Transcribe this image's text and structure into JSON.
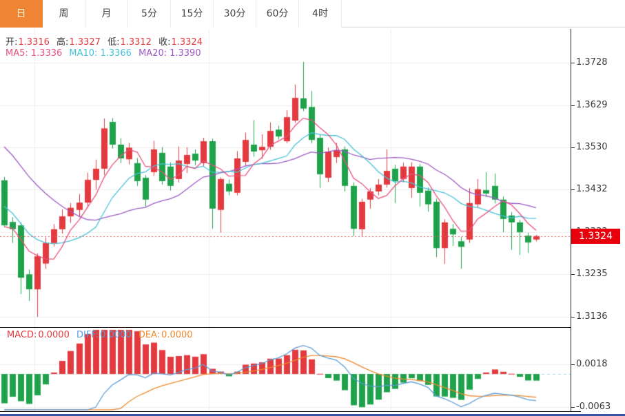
{
  "toolbar": {
    "tabs": [
      {
        "label": "日",
        "active": true
      },
      {
        "label": "周",
        "active": false
      },
      {
        "label": "月",
        "active": false
      },
      {
        "label": "5分",
        "active": false
      },
      {
        "label": "15分",
        "active": false
      },
      {
        "label": "30分",
        "active": false
      },
      {
        "label": "60分",
        "active": false
      },
      {
        "label": "4时",
        "active": false
      }
    ]
  },
  "quote_bar": {
    "open_label": "开:",
    "open": "1.3316",
    "high_label": "高:",
    "high": "1.3327",
    "low_label": "低:",
    "low": "1.3312",
    "close_label": "收:",
    "close": "1.3324"
  },
  "ma_bar": {
    "ma5_label": "MA5:",
    "ma5": "1.3336",
    "ma10_label": "MA10:",
    "ma10": "1.3366",
    "ma20_label": "MA20:",
    "ma20": "1.3390"
  },
  "macd_bar": {
    "macd_label": "MACD:",
    "macd": "0.0000",
    "diff_label": "DIFF:",
    "diff": "0.0000",
    "dea_label": "DEA:",
    "dea": "0.0000"
  },
  "price_axis": {
    "ticks": [
      "1.3728",
      "1.3629",
      "1.3530",
      "1.3432",
      "1.3333",
      "1.3235",
      "1.3136"
    ],
    "current": "1.3324"
  },
  "macd_axis": {
    "ticks": [
      "0.0018",
      "-0.0063"
    ]
  },
  "colors": {
    "up": "#e23a3e",
    "down": "#1fa24b",
    "ma5": "#e9507e",
    "ma10": "#46c1d8",
    "ma20": "#9b59c4",
    "diff": "#5b9bd5",
    "dea": "#ee8a2e",
    "grid": "#ececec",
    "dotted_price": "#e25b5b",
    "zero_dash": "#9fd4e8",
    "accent": "#ee8434",
    "tag": "#e8000d"
  },
  "chart_data": {
    "type": "candlestick",
    "panels": [
      "price",
      "macd"
    ],
    "price_ticks": [
      1.3728,
      1.3629,
      1.353,
      1.3432,
      1.3333,
      1.3235,
      1.3136
    ],
    "price_top": 1.38066,
    "price_bottom": 1.31119,
    "current_price": 1.3324,
    "macd_ticks": [
      0.0018,
      -0.0063
    ],
    "vgrid_x": [
      50,
      303,
      567
    ],
    "ma_periods": [
      5,
      10,
      20
    ],
    "macd_params": [
      12,
      26,
      9
    ],
    "pre_closes": [
      1.374,
      1.372,
      1.37,
      1.369,
      1.3675,
      1.366,
      1.365,
      1.364,
      1.3625,
      1.361,
      1.35,
      1.3465,
      1.344,
      1.3415,
      1.3385,
      1.336,
      1.335,
      1.334,
      1.333
    ],
    "candles": [
      [
        1.3454,
        1.3462,
        1.3345,
        1.3349
      ],
      [
        1.3357,
        1.3368,
        1.3308,
        1.334
      ],
      [
        1.3349,
        1.3356,
        1.3189,
        1.3227
      ],
      [
        1.3235,
        1.3246,
        1.3173,
        1.32
      ],
      [
        1.32,
        1.3284,
        1.3136,
        1.3277
      ],
      [
        1.326,
        1.3321,
        1.3248,
        1.3308
      ],
      [
        1.3308,
        1.3352,
        1.33,
        1.334
      ],
      [
        1.334,
        1.3386,
        1.333,
        1.337
      ],
      [
        1.337,
        1.3401,
        1.3355,
        1.339
      ],
      [
        1.3385,
        1.3422,
        1.3368,
        1.3402
      ],
      [
        1.3402,
        1.3472,
        1.339,
        1.3455
      ],
      [
        1.3455,
        1.3502,
        1.3432,
        1.3481
      ],
      [
        1.3481,
        1.3598,
        1.3466,
        1.3575
      ],
      [
        1.359,
        1.3599,
        1.3528,
        1.3537
      ],
      [
        1.3537,
        1.3552,
        1.3494,
        1.3505
      ],
      [
        1.3503,
        1.3541,
        1.3491,
        1.353
      ],
      [
        1.3494,
        1.3506,
        1.3441,
        1.3452
      ],
      [
        1.346,
        1.3466,
        1.3393,
        1.3409
      ],
      [
        1.3473,
        1.3546,
        1.3464,
        1.3526
      ],
      [
        1.3518,
        1.3531,
        1.3444,
        1.3452
      ],
      [
        1.3486,
        1.3496,
        1.343,
        1.3441
      ],
      [
        1.3457,
        1.3533,
        1.3449,
        1.35
      ],
      [
        1.3492,
        1.3531,
        1.3471,
        1.3513
      ],
      [
        1.3516,
        1.3526,
        1.3489,
        1.35
      ],
      [
        1.3494,
        1.3553,
        1.3487,
        1.3545
      ],
      [
        1.3545,
        1.3551,
        1.3341,
        1.3388
      ],
      [
        1.3385,
        1.3461,
        1.3332,
        1.3457
      ],
      [
        1.3446,
        1.3456,
        1.3419,
        1.3428
      ],
      [
        1.3425,
        1.3522,
        1.3419,
        1.3505
      ],
      [
        1.3497,
        1.3565,
        1.3489,
        1.3548
      ],
      [
        1.3537,
        1.3594,
        1.3509,
        1.3521
      ],
      [
        1.3524,
        1.3561,
        1.3504,
        1.3532
      ],
      [
        1.3532,
        1.3589,
        1.3525,
        1.3569
      ],
      [
        1.3572,
        1.3581,
        1.3549,
        1.3556
      ],
      [
        1.3545,
        1.3617,
        1.354,
        1.3601
      ],
      [
        1.3593,
        1.3677,
        1.3588,
        1.3646
      ],
      [
        1.3645,
        1.373,
        1.3615,
        1.3621
      ],
      [
        1.3625,
        1.3662,
        1.354,
        1.3548
      ],
      [
        1.3553,
        1.356,
        1.3436,
        1.3468
      ],
      [
        1.346,
        1.353,
        1.345,
        1.3521
      ],
      [
        1.3508,
        1.3541,
        1.3494,
        1.3524
      ],
      [
        1.3526,
        1.3533,
        1.3428,
        1.3441
      ],
      [
        1.3441,
        1.3449,
        1.3324,
        1.3341
      ],
      [
        1.334,
        1.3411,
        1.3324,
        1.3404
      ],
      [
        1.3409,
        1.3436,
        1.3388,
        1.3428
      ],
      [
        1.3428,
        1.3457,
        1.3419,
        1.3444
      ],
      [
        1.3444,
        1.3526,
        1.3437,
        1.3476
      ],
      [
        1.3481,
        1.349,
        1.3401,
        1.3452
      ],
      [
        1.3457,
        1.3495,
        1.3449,
        1.3486
      ],
      [
        1.3436,
        1.3496,
        1.3413,
        1.3486
      ],
      [
        1.3486,
        1.3492,
        1.3393,
        1.3425
      ],
      [
        1.343,
        1.3437,
        1.3381,
        1.3398
      ],
      [
        1.3404,
        1.3411,
        1.3275,
        1.3296
      ],
      [
        1.3296,
        1.3363,
        1.3259,
        1.3356
      ],
      [
        1.3341,
        1.3352,
        1.3301,
        1.3328
      ],
      [
        1.3312,
        1.3322,
        1.3248,
        1.3299
      ],
      [
        1.3316,
        1.3436,
        1.3308,
        1.3401
      ],
      [
        1.3398,
        1.3457,
        1.339,
        1.3433
      ],
      [
        1.3431,
        1.3473,
        1.3415,
        1.3423
      ],
      [
        1.3441,
        1.347,
        1.34,
        1.3409
      ],
      [
        1.3409,
        1.3416,
        1.3333,
        1.3364
      ],
      [
        1.3372,
        1.338,
        1.3292,
        1.3356
      ],
      [
        1.3356,
        1.3362,
        1.328,
        1.3333
      ],
      [
        1.3325,
        1.3332,
        1.3285,
        1.3309
      ],
      [
        1.3316,
        1.3327,
        1.3312,
        1.3324
      ]
    ]
  }
}
